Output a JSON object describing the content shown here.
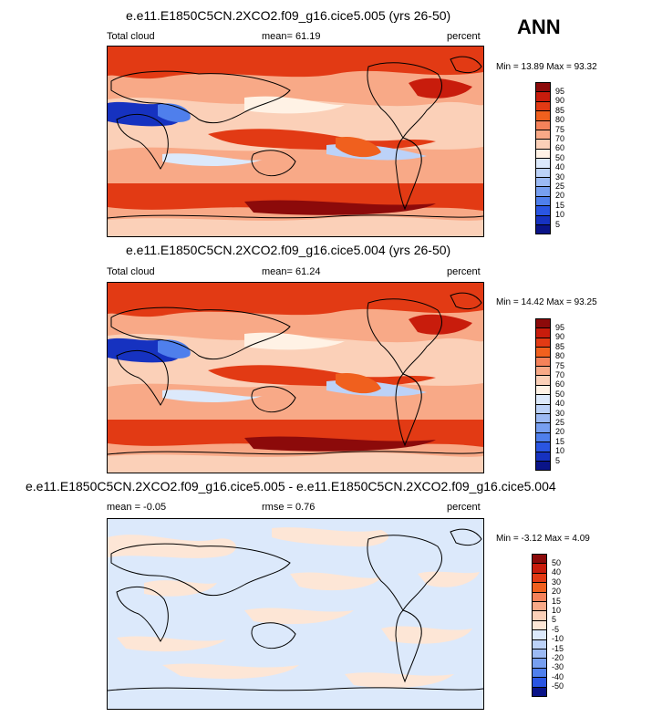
{
  "season": "ANN",
  "panels": [
    {
      "id": "top",
      "title": "e.e11.E1850C5CN.2XCO2.f09_g16.cice5.005 (yrs 26-50)",
      "left_label": "Total cloud",
      "center_label": "mean=  61.19",
      "right_label": "percent",
      "minmax": "Min =  13.89 Max =  93.32",
      "variant": "abs"
    },
    {
      "id": "middle",
      "title": "e.e11.E1850C5CN.2XCO2.f09_g16.cice5.004 (yrs 26-50)",
      "left_label": "Total cloud",
      "center_label": "mean=  61.24",
      "right_label": "percent",
      "minmax": "Min =  14.42 Max =  93.25",
      "variant": "abs"
    },
    {
      "id": "bottom",
      "title": "e.e11.E1850C5CN.2XCO2.f09_g16.cice5.005 - e.e11.E1850C5CN.2XCO2.f09_g16.cice5.004",
      "left_label": "mean =  -0.05",
      "center_label": "rmse =   0.76",
      "right_label": "percent",
      "minmax": "Min =  -3.12 Max =   4.09",
      "variant": "diff"
    }
  ],
  "colorbars": {
    "abs": {
      "labels": [
        "95",
        "90",
        "85",
        "80",
        "75",
        "70",
        "60",
        "50",
        "40",
        "30",
        "25",
        "20",
        "15",
        "10",
        "5"
      ],
      "colors": [
        "#8c0a0a",
        "#c81c0c",
        "#e23a14",
        "#f0601e",
        "#f5825a",
        "#f8a987",
        "#fbd0b8",
        "#fff2e5",
        "#dce9fb",
        "#bcd2f8",
        "#9cbaf4",
        "#779ff0",
        "#4f7fec",
        "#2a55e2",
        "#1632c0",
        "#0a1488"
      ]
    },
    "diff": {
      "labels": [
        "50",
        "40",
        "30",
        "20",
        "15",
        "10",
        "5",
        "-5",
        "-10",
        "-15",
        "-20",
        "-30",
        "-40",
        "-50"
      ],
      "colors": [
        "#8c0a0a",
        "#c81c0c",
        "#e23a14",
        "#f0601e",
        "#f5825a",
        "#f8a987",
        "#fbd0b8",
        "#fde6d6",
        "#dce9fb",
        "#bcd2f8",
        "#9cbaf4",
        "#779ff0",
        "#4f7fec",
        "#2a55e2",
        "#0a1488"
      ]
    }
  }
}
